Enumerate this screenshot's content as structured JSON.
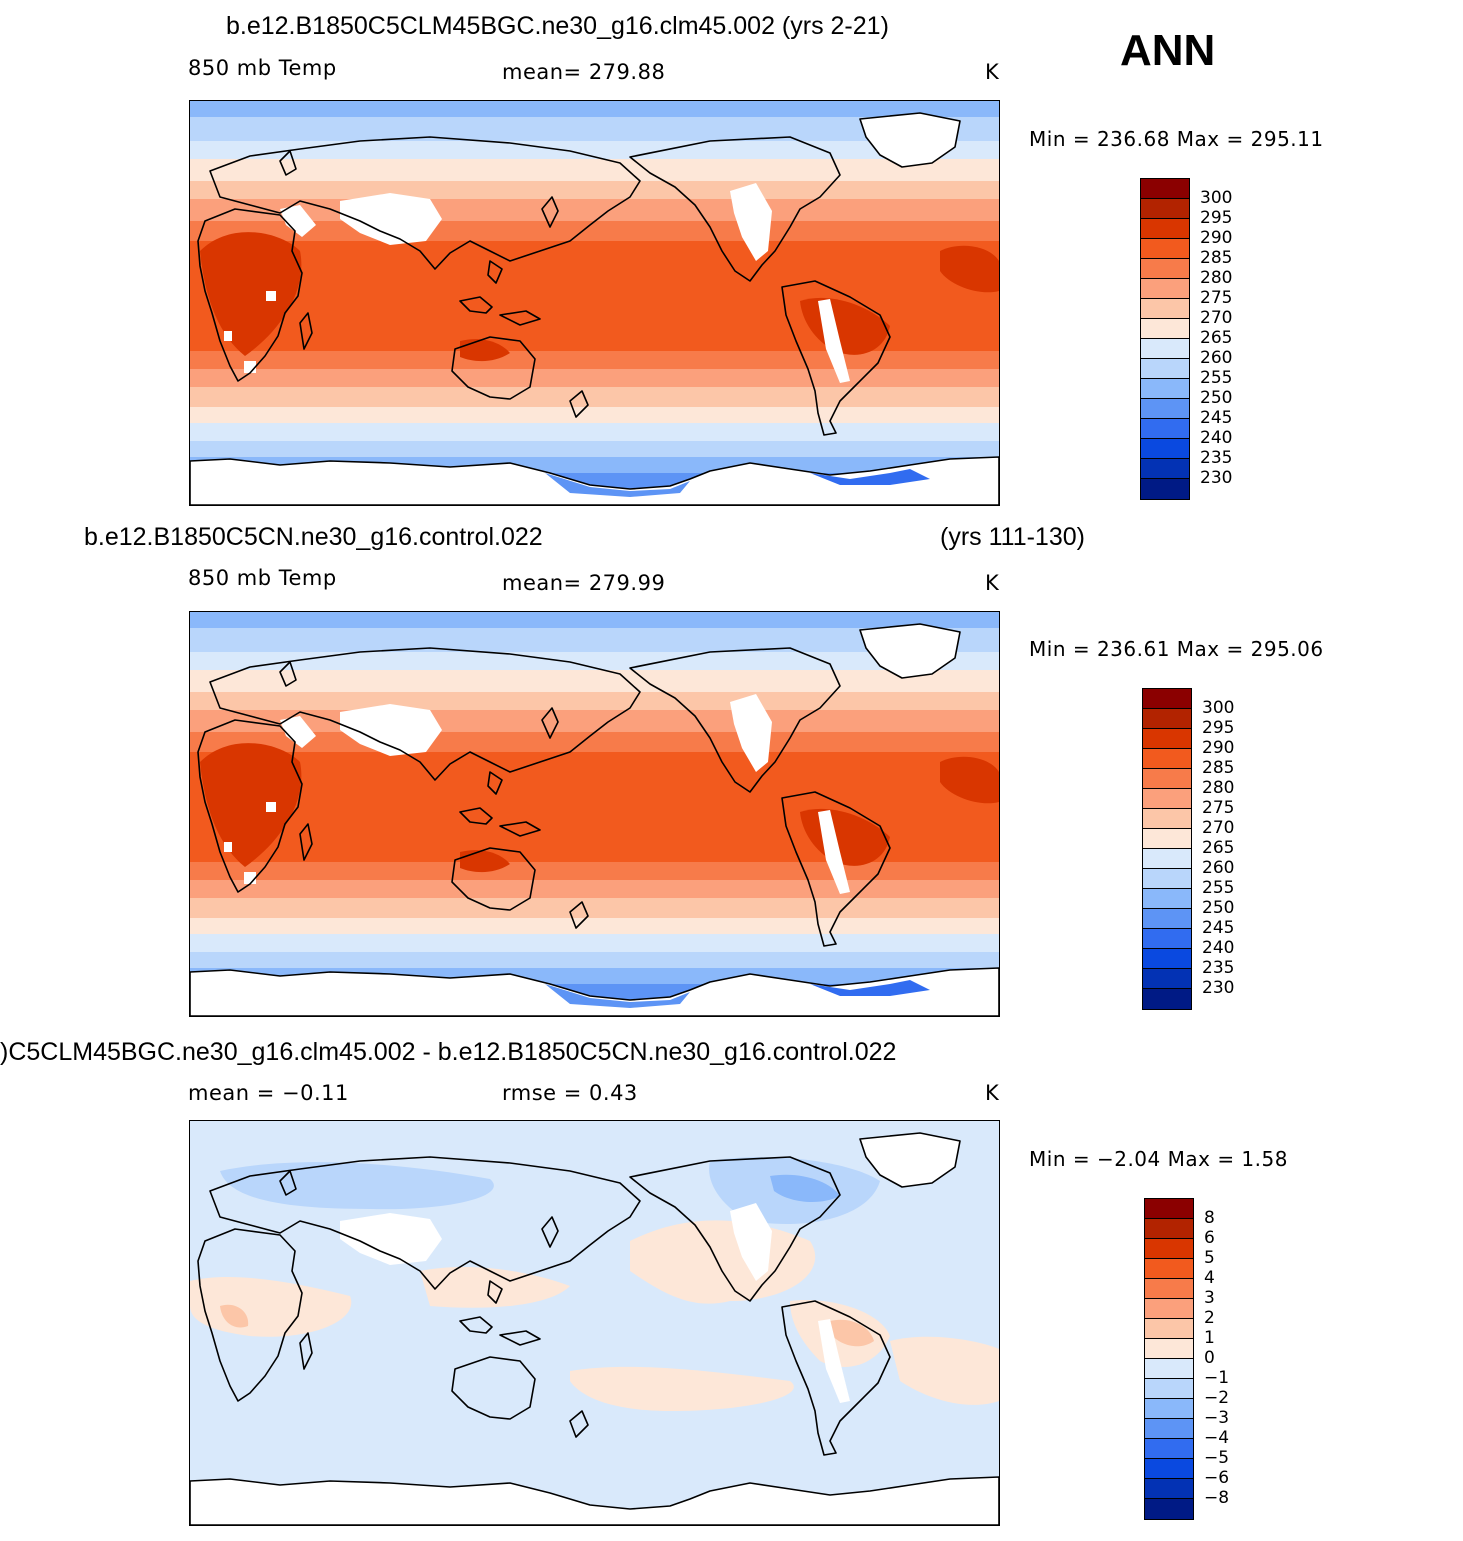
{
  "season": "ANN",
  "panels": [
    {
      "title_left": "b.e12.B1850C5CLM45BGC.ne30_g16.clm45.002 (yrs 2-21)",
      "title_right": "",
      "field": "850 mb Temp",
      "stat": "mean=  279.88",
      "stat2": "",
      "units": "K",
      "minmax": "Min  =  236.68  Max  =  295.11",
      "map_type": "absolute",
      "colorbar": {
        "colors": [
          "#8b0000",
          "#b22300",
          "#d93600",
          "#f25a1e",
          "#f77b4a",
          "#fba07c",
          "#fcc6a8",
          "#fde7d8",
          "#d9e9fb",
          "#b9d6fb",
          "#8ab8fa",
          "#5d94f5",
          "#316cf0",
          "#0a49e0",
          "#0332b4",
          "#001a85"
        ],
        "labels": [
          "300",
          "295",
          "290",
          "285",
          "280",
          "275",
          "270",
          "265",
          "260",
          "255",
          "250",
          "245",
          "240",
          "235",
          "230"
        ]
      }
    },
    {
      "title_left": "b.e12.B1850C5CN.ne30_g16.control.022",
      "title_right": "(yrs 111-130)",
      "field": "850 mb Temp",
      "stat": "mean=  279.99",
      "stat2": "",
      "units": "K",
      "minmax": "Min  =  236.61  Max  =  295.06",
      "map_type": "absolute",
      "colorbar": {
        "colors": [
          "#8b0000",
          "#b22300",
          "#d93600",
          "#f25a1e",
          "#f77b4a",
          "#fba07c",
          "#fcc6a8",
          "#fde7d8",
          "#d9e9fb",
          "#b9d6fb",
          "#8ab8fa",
          "#5d94f5",
          "#316cf0",
          "#0a49e0",
          "#0332b4",
          "#001a85"
        ],
        "labels": [
          "300",
          "295",
          "290",
          "285",
          "280",
          "275",
          "270",
          "265",
          "260",
          "255",
          "250",
          "245",
          "240",
          "235",
          "230"
        ]
      }
    },
    {
      "title_left": ")C5CLM45BGC.ne30_g16.clm45.002 - b.e12.B1850C5CN.ne30_g16.control.022",
      "title_right": "",
      "field": "mean  =   −0.11",
      "stat": "rmse  =     0.43",
      "stat2": "",
      "units": "K",
      "minmax": "Min  =    −2.04  Max  =     1.58",
      "map_type": "difference",
      "colorbar": {
        "colors": [
          "#8b0000",
          "#b22300",
          "#d93600",
          "#f25a1e",
          "#f77b4a",
          "#fba07c",
          "#fcc6a8",
          "#fde7d8",
          "#d9e9fb",
          "#b9d6fb",
          "#8ab8fa",
          "#5d94f5",
          "#316cf0",
          "#0a49e0",
          "#0332b4",
          "#001a85"
        ],
        "labels": [
          "8",
          "6",
          "5",
          "4",
          "3",
          "2",
          "1",
          "0",
          "−1",
          "−2",
          "−3",
          "−4",
          "−5",
          "−6",
          "−8"
        ]
      }
    }
  ]
}
